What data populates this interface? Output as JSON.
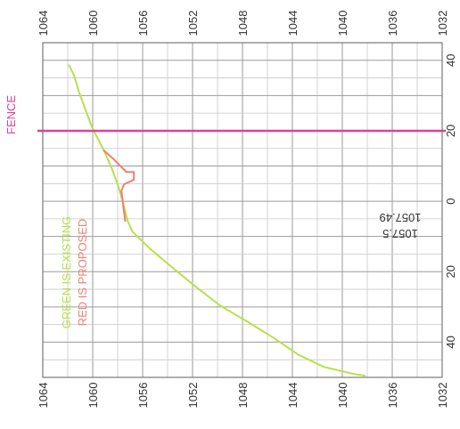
{
  "chart_data": {
    "type": "line",
    "title": "",
    "xlabel": "",
    "ylabel": "",
    "orientation": "rotated-90-clockwise",
    "elevation_axis": {
      "range": [
        1032,
        1064
      ],
      "major_ticks": [
        1064,
        1060,
        1056,
        1052,
        1048,
        1044,
        1040,
        1036,
        1032
      ],
      "tick_labels": [
        "1064",
        "1060",
        "1056",
        "1052",
        "1048",
        "1044",
        "1040",
        "1036",
        "1032"
      ]
    },
    "station_axis": {
      "range": [
        -50,
        45
      ],
      "tick_labels": [
        {
          "value": 40,
          "label": "40"
        },
        {
          "value": 20,
          "label": "20"
        },
        {
          "value": 0,
          "label": "0"
        },
        {
          "value": -20,
          "label": "20"
        },
        {
          "value": -40,
          "label": "40"
        }
      ]
    },
    "grid": true,
    "series": [
      {
        "name": "GREEN IS EXISTING",
        "color": "#b8e04a",
        "points": [
          {
            "x": 38.6,
            "y": 1061.9
          },
          {
            "x": 35.8,
            "y": 1061.5
          },
          {
            "x": 31.0,
            "y": 1061.1
          },
          {
            "x": 26.2,
            "y": 1060.6
          },
          {
            "x": 21.4,
            "y": 1060.1
          },
          {
            "x": 19.2,
            "y": 1059.8
          },
          {
            "x": 14.4,
            "y": 1059.1
          },
          {
            "x": 9.6,
            "y": 1058.5
          },
          {
            "x": 4.8,
            "y": 1058.0
          },
          {
            "x": 0.0,
            "y": 1057.6
          },
          {
            "x": -5.6,
            "y": 1057.2
          },
          {
            "x": -8.7,
            "y": 1056.8
          },
          {
            "x": -13.5,
            "y": 1055.4
          },
          {
            "x": -18.3,
            "y": 1053.8
          },
          {
            "x": -24.4,
            "y": 1051.7
          },
          {
            "x": -29.6,
            "y": 1049.8
          },
          {
            "x": -34.4,
            "y": 1047.5
          },
          {
            "x": -38.8,
            "y": 1045.5
          },
          {
            "x": -43.6,
            "y": 1043.5
          },
          {
            "x": -47.0,
            "y": 1041.5
          },
          {
            "x": -49.1,
            "y": 1039.0
          },
          {
            "x": -49.5,
            "y": 1038.2
          }
        ]
      },
      {
        "name": "RED IS PROPOSED",
        "color": "#f08070",
        "points": [
          {
            "x": 14.4,
            "y": 1059.1
          },
          {
            "x": 12.2,
            "y": 1058.4
          },
          {
            "x": 8.3,
            "y": 1057.3
          },
          {
            "x": 8.3,
            "y": 1056.7
          },
          {
            "x": 6.1,
            "y": 1056.7
          },
          {
            "x": 4.8,
            "y": 1057.5
          },
          {
            "x": 3.0,
            "y": 1057.7
          },
          {
            "x": -5.6,
            "y": 1057.4
          }
        ]
      }
    ],
    "annotations": [
      {
        "text": "FENCE",
        "color": "#e0409a",
        "x": 20.0
      },
      {
        "text": "GREEN IS EXISTING",
        "color": "#b8e04a"
      },
      {
        "text": "RED IS PROPOSED",
        "color": "#f08070"
      },
      {
        "text": "1057.49",
        "color": "#333333"
      },
      {
        "text": "1057.5",
        "color": "#333333"
      }
    ],
    "reference_lines": [
      {
        "name": "FENCE",
        "x": 20.0,
        "color": "#e0409a"
      }
    ]
  }
}
